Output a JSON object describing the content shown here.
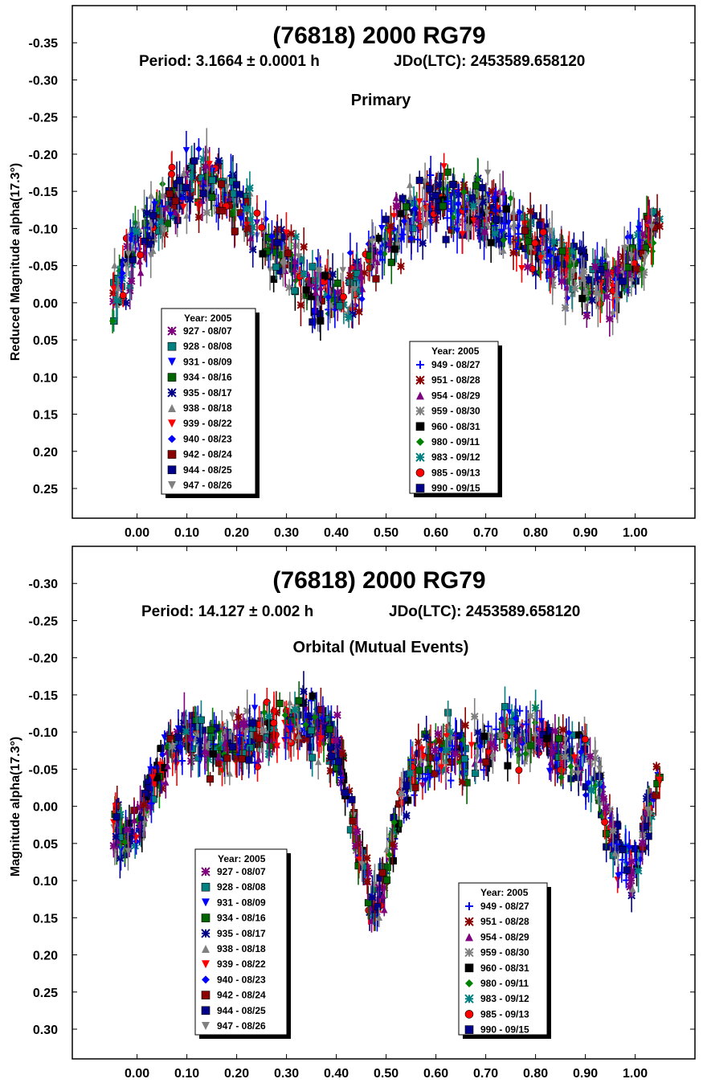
{
  "chart_data": [
    {
      "type": "scatter",
      "title": "(76818) 2000 RG79",
      "subtitle_period": "Period: 3.1664 ± 0.0001 h",
      "subtitle_epoch": "JDo(LTC): 2453589.658120",
      "component": "Primary",
      "xlabel": "",
      "ylabel": "Reduced Magnitude alpha(17.3°)",
      "xlim": [
        -0.13,
        1.12
      ],
      "ylim": [
        -0.4,
        0.29
      ],
      "y_inverted": true,
      "xticks": [
        "0.00",
        "0.10",
        "0.20",
        "0.30",
        "0.40",
        "0.50",
        "0.60",
        "0.70",
        "0.80",
        "0.90",
        "1.00"
      ],
      "xtick_values": [
        0.0,
        0.1,
        0.2,
        0.3,
        0.4,
        0.5,
        0.6,
        0.7,
        0.8,
        0.9,
        1.0
      ],
      "yticks": [
        "-0.35",
        "-0.30",
        "-0.25",
        "-0.20",
        "-0.15",
        "-0.10",
        "-0.05",
        "0.00",
        "0.05",
        "0.10",
        "0.15",
        "0.20",
        "0.25"
      ],
      "ytick_values": [
        -0.35,
        -0.3,
        -0.25,
        -0.2,
        -0.15,
        -0.1,
        -0.05,
        0.0,
        0.05,
        0.1,
        0.15,
        0.2,
        0.25
      ],
      "curve": {
        "shape": "double-peaked lightcurve",
        "x": [
          -0.05,
          0.0,
          0.05,
          0.1,
          0.15,
          0.2,
          0.25,
          0.3,
          0.35,
          0.4,
          0.45,
          0.5,
          0.55,
          0.6,
          0.65,
          0.7,
          0.75,
          0.8,
          0.85,
          0.9,
          0.95,
          1.0,
          1.05
        ],
        "y": [
          0.0,
          -0.08,
          -0.12,
          -0.16,
          -0.16,
          -0.14,
          -0.1,
          -0.06,
          -0.02,
          -0.01,
          -0.03,
          -0.08,
          -0.12,
          -0.14,
          -0.13,
          -0.12,
          -0.1,
          -0.08,
          -0.05,
          -0.02,
          -0.02,
          -0.06,
          -0.12
        ],
        "scatter": 0.035
      },
      "legend_left": {
        "title": "Year: 2005",
        "entries": [
          {
            "label": "927 - 08/07",
            "marker": "asterisk",
            "color": "#7f007f"
          },
          {
            "label": "928 - 08/08",
            "marker": "square",
            "color": "#008080"
          },
          {
            "label": "931 - 08/09",
            "marker": "triangle-down",
            "color": "#0000ff"
          },
          {
            "label": "934 - 08/16",
            "marker": "square",
            "color": "#006400"
          },
          {
            "label": "935 - 08/17",
            "marker": "asterisk",
            "color": "#00008b"
          },
          {
            "label": "938 - 08/18",
            "marker": "triangle-up",
            "color": "#808080"
          },
          {
            "label": "939 - 08/22",
            "marker": "triangle-down",
            "color": "#ff0000"
          },
          {
            "label": "940 - 08/23",
            "marker": "diamond",
            "color": "#0000ff"
          },
          {
            "label": "942 - 08/24",
            "marker": "square",
            "color": "#8b0000"
          },
          {
            "label": "944 - 08/25",
            "marker": "square",
            "color": "#00008b"
          },
          {
            "label": "947 - 08/26",
            "marker": "triangle-down",
            "color": "#808080"
          }
        ]
      },
      "legend_right": {
        "title": "Year: 2005",
        "entries": [
          {
            "label": "949 - 08/27",
            "marker": "plus",
            "color": "#0000ff"
          },
          {
            "label": "951 - 08/28",
            "marker": "asterisk",
            "color": "#8b0000"
          },
          {
            "label": "954 - 08/29",
            "marker": "triangle-up",
            "color": "#7f007f"
          },
          {
            "label": "959 - 08/30",
            "marker": "asterisk",
            "color": "#808080"
          },
          {
            "label": "960 - 08/31",
            "marker": "square",
            "color": "#000000"
          },
          {
            "label": "980 - 09/11",
            "marker": "diamond",
            "color": "#008000"
          },
          {
            "label": "983 - 09/12",
            "marker": "asterisk",
            "color": "#008080"
          },
          {
            "label": "985 - 09/13",
            "marker": "circle",
            "color": "#ff0000"
          },
          {
            "label": "990 - 09/15",
            "marker": "square",
            "color": "#00008b"
          }
        ]
      }
    },
    {
      "type": "scatter",
      "title": "(76818) 2000 RG79",
      "subtitle_period": "Period: 14.127 ± 0.002 h",
      "subtitle_epoch": "JDo(LTC): 2453589.658120",
      "component": "Orbital (Mutual Events)",
      "xlabel": "",
      "ylabel": "Magnitude alpha(17.3°)",
      "xlim": [
        -0.13,
        1.12
      ],
      "ylim": [
        -0.35,
        0.34
      ],
      "y_inverted": true,
      "xticks": [
        "0.00",
        "0.10",
        "0.20",
        "0.30",
        "0.40",
        "0.50",
        "0.60",
        "0.70",
        "0.80",
        "0.90",
        "1.00"
      ],
      "xtick_values": [
        0.0,
        0.1,
        0.2,
        0.3,
        0.4,
        0.5,
        0.6,
        0.7,
        0.8,
        0.9,
        1.0
      ],
      "yticks": [
        "-0.30",
        "-0.25",
        "-0.20",
        "-0.15",
        "-0.10",
        "-0.05",
        "0.00",
        "0.05",
        "0.10",
        "0.15",
        "0.20",
        "0.25",
        "0.30"
      ],
      "ytick_values": [
        -0.3,
        -0.25,
        -0.2,
        -0.15,
        -0.1,
        -0.05,
        0.0,
        0.05,
        0.1,
        0.15,
        0.2,
        0.25,
        0.3
      ],
      "curve": {
        "shape": "plateaus with two mutual-event dips",
        "x": [
          -0.05,
          -0.02,
          0.0,
          0.03,
          0.06,
          0.1,
          0.15,
          0.2,
          0.25,
          0.3,
          0.35,
          0.4,
          0.43,
          0.45,
          0.47,
          0.49,
          0.51,
          0.54,
          0.58,
          0.62,
          0.66,
          0.7,
          0.75,
          0.8,
          0.85,
          0.9,
          0.93,
          0.95,
          0.97,
          0.99,
          1.01,
          1.03,
          1.05
        ],
        "y": [
          0.03,
          0.05,
          0.03,
          -0.03,
          -0.07,
          -0.09,
          -0.08,
          -0.08,
          -0.1,
          -0.11,
          -0.11,
          -0.08,
          0.0,
          0.07,
          0.13,
          0.12,
          0.05,
          -0.02,
          -0.06,
          -0.08,
          -0.07,
          -0.08,
          -0.1,
          -0.09,
          -0.07,
          -0.06,
          -0.02,
          0.03,
          0.07,
          0.09,
          0.06,
          0.0,
          -0.05
        ],
        "scatter": 0.03
      },
      "legend_left": {
        "title": "Year: 2005",
        "entries": [
          {
            "label": "927 - 08/07",
            "marker": "asterisk",
            "color": "#7f007f"
          },
          {
            "label": "928 - 08/08",
            "marker": "square",
            "color": "#008080"
          },
          {
            "label": "931 - 08/09",
            "marker": "triangle-down",
            "color": "#0000ff"
          },
          {
            "label": "934 - 08/16",
            "marker": "square",
            "color": "#006400"
          },
          {
            "label": "935 - 08/17",
            "marker": "asterisk",
            "color": "#00008b"
          },
          {
            "label": "938 - 08/18",
            "marker": "triangle-up",
            "color": "#808080"
          },
          {
            "label": "939 - 08/22",
            "marker": "triangle-down",
            "color": "#ff0000"
          },
          {
            "label": "940 - 08/23",
            "marker": "diamond",
            "color": "#0000ff"
          },
          {
            "label": "942 - 08/24",
            "marker": "square",
            "color": "#8b0000"
          },
          {
            "label": "944 - 08/25",
            "marker": "square",
            "color": "#00008b"
          },
          {
            "label": "947 - 08/26",
            "marker": "triangle-down",
            "color": "#808080"
          }
        ]
      },
      "legend_right": {
        "title": "Year: 2005",
        "entries": [
          {
            "label": "949 - 08/27",
            "marker": "plus",
            "color": "#0000ff"
          },
          {
            "label": "951 - 08/28",
            "marker": "asterisk",
            "color": "#8b0000"
          },
          {
            "label": "954 - 08/29",
            "marker": "triangle-up",
            "color": "#7f007f"
          },
          {
            "label": "959 - 08/30",
            "marker": "asterisk",
            "color": "#808080"
          },
          {
            "label": "960 - 08/31",
            "marker": "square",
            "color": "#000000"
          },
          {
            "label": "980 - 09/11",
            "marker": "diamond",
            "color": "#008000"
          },
          {
            "label": "983 - 09/12",
            "marker": "asterisk",
            "color": "#008080"
          },
          {
            "label": "985 - 09/13",
            "marker": "circle",
            "color": "#ff0000"
          },
          {
            "label": "990 - 09/15",
            "marker": "square",
            "color": "#00008b"
          }
        ]
      }
    }
  ]
}
